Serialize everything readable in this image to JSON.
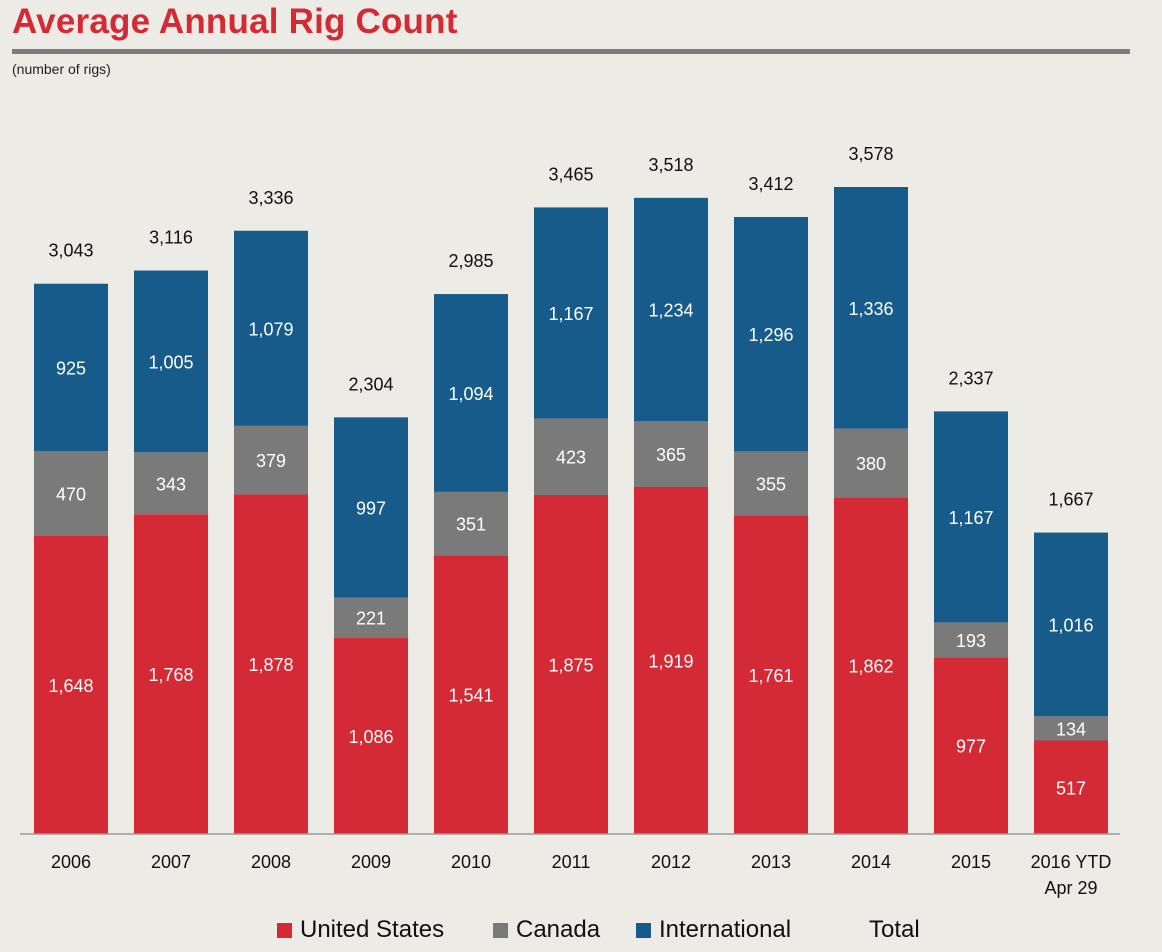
{
  "header": {
    "title": "Average Annual Rig Count",
    "subtitle": "(number of rigs)"
  },
  "colors": {
    "united_states": "#d42a35",
    "canada": "#7a7a7a",
    "international": "#175b8a",
    "title": "#d42a35"
  },
  "legend": {
    "items": [
      {
        "label": "United States",
        "color": "#d42a35"
      },
      {
        "label": "Canada",
        "color": "#7a7a7a"
      },
      {
        "label": "International",
        "color": "#175b8a"
      },
      {
        "label": "Total",
        "color": ""
      }
    ]
  },
  "chart_data": {
    "type": "bar",
    "stacked": true,
    "title": "Average Annual Rig Count",
    "subtitle": "(number of rigs)",
    "categories": [
      "2006",
      "2007",
      "2008",
      "2009",
      "2010",
      "2011",
      "2012",
      "2013",
      "2014",
      "2015",
      "2016 YTD\nApr 29"
    ],
    "series": [
      {
        "name": "United States",
        "values": [
          1648,
          1768,
          1878,
          1086,
          1541,
          1875,
          1919,
          1761,
          1862,
          977,
          517
        ],
        "labels": [
          "1,648",
          "1,768",
          "1,878",
          "1,086",
          "1,541",
          "1,875",
          "1,919",
          "1,761",
          "1,862",
          "977",
          "517"
        ]
      },
      {
        "name": "Canada",
        "values": [
          470,
          343,
          379,
          221,
          351,
          423,
          365,
          355,
          380,
          193,
          134
        ],
        "labels": [
          "470",
          "343",
          "379",
          "221",
          "351",
          "423",
          "365",
          "355",
          "380",
          "193",
          "134"
        ]
      },
      {
        "name": "International",
        "values": [
          925,
          1005,
          1079,
          997,
          1094,
          1167,
          1234,
          1296,
          1336,
          1167,
          1016
        ],
        "labels": [
          "925",
          "1,005",
          "1,079",
          "997",
          "1,094",
          "1,167",
          "1,234",
          "1,296",
          "1,336",
          "1,167",
          "1,016"
        ]
      }
    ],
    "totals": [
      3043,
      3116,
      3336,
      2304,
      2985,
      3465,
      3518,
      3412,
      3578,
      2337,
      1667
    ],
    "total_labels": [
      "3,043",
      "3,116",
      "3,336",
      "2,304",
      "2,985",
      "3,465",
      "3,518",
      "3,412",
      "3,578",
      "2,337",
      "1,667"
    ],
    "ylim": [
      0,
      3578
    ],
    "grid": false,
    "legend_position": "bottom"
  }
}
